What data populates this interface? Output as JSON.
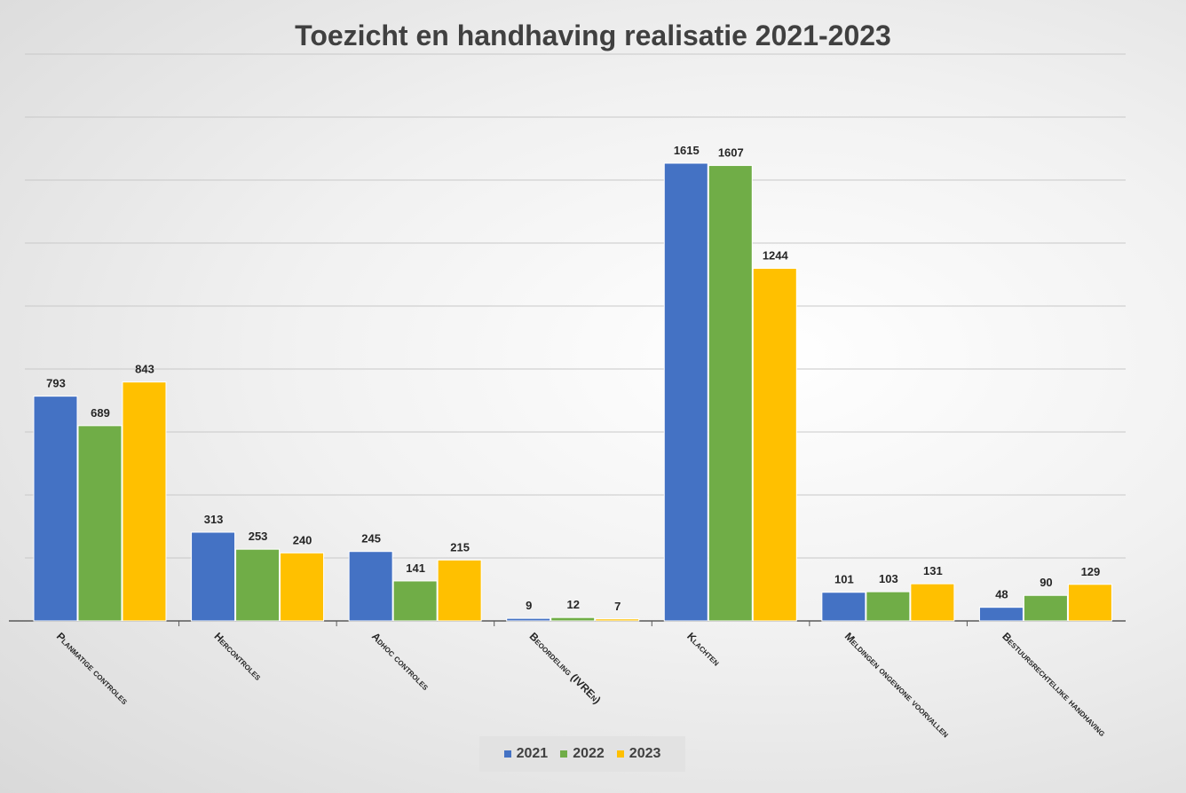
{
  "chart_data": {
    "type": "bar",
    "title": "Toezicht en handhaving realisatie 2021-2023",
    "categories": [
      "Planmatige controles",
      "Hercontroles",
      "Adhoc controles",
      "Beoordeling (IVREn)",
      "Klachten",
      "Meldingen ongewone voorvallen",
      "Bestuursrechtelijke handhaving"
    ],
    "series": [
      {
        "name": "2021",
        "color": "#4472C4",
        "values": [
          793,
          313,
          245,
          9,
          1615,
          101,
          48
        ]
      },
      {
        "name": "2022",
        "color": "#70AD47",
        "values": [
          689,
          253,
          141,
          12,
          1607,
          103,
          90
        ]
      },
      {
        "name": "2023",
        "color": "#FFC000",
        "values": [
          843,
          240,
          215,
          7,
          1244,
          131,
          129
        ]
      }
    ],
    "ylim": [
      0,
      2000
    ],
    "gridlines": true,
    "y_axis_labels_shown": false,
    "legend_position": "bottom"
  }
}
